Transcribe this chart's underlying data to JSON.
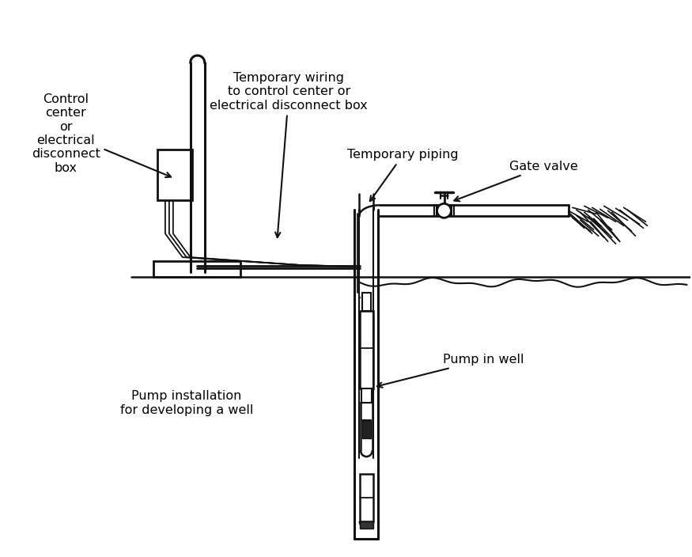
{
  "bg_color": "#ffffff",
  "line_color": "#111111",
  "labels": {
    "control_center": "Control\ncenter\nor\nelectrical\ndisconnect\nbox",
    "temp_wiring": "Temporary wiring\nto control center or\nelectrical disconnect box",
    "temp_piping": "Temporary piping",
    "gate_valve": "Gate valve",
    "pump_install": "Pump installation\nfor developing a well",
    "pump_in_well": "Pump in well"
  },
  "font_size": 11.5
}
